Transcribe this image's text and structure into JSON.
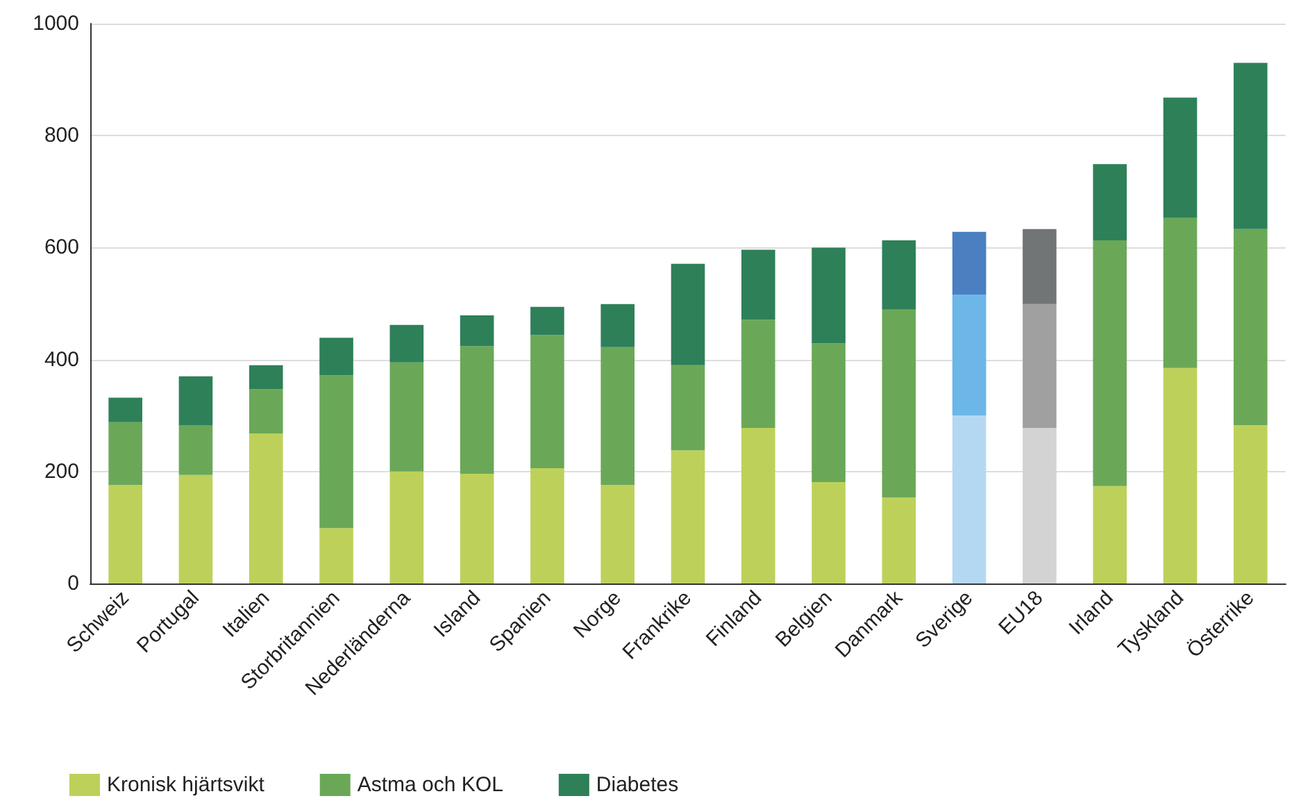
{
  "chart_data": {
    "type": "bar",
    "stacked": true,
    "categories": [
      "Schweiz",
      "Portugal",
      "Italien",
      "Storbritannien",
      "Nederländerna",
      "Island",
      "Spanien",
      "Norge",
      "Frankrike",
      "Finland",
      "Belgien",
      "Danmark",
      "Sverige",
      "EU18",
      "Irland",
      "Tyskland",
      "Österrike"
    ],
    "series": [
      {
        "name": "Kronisk hjärtsvikt",
        "color": "#bdd15a",
        "colors": [
          "#bdd15a",
          "#bdd15a",
          "#bdd15a",
          "#bdd15a",
          "#bdd15a",
          "#bdd15a",
          "#bdd15a",
          "#bdd15a",
          "#bdd15a",
          "#bdd15a",
          "#bdd15a",
          "#bdd15a",
          "#b5d8f2",
          "#d3d3d3",
          "#bdd15a",
          "#bdd15a",
          "#bdd15a"
        ],
        "values": [
          176,
          194,
          268,
          99,
          200,
          196,
          206,
          176,
          238,
          278,
          181,
          154,
          300,
          278,
          174,
          385,
          283
        ]
      },
      {
        "name": "Astma och KOL",
        "color": "#6aa858",
        "colors": [
          "#6aa858",
          "#6aa858",
          "#6aa858",
          "#6aa858",
          "#6aa858",
          "#6aa858",
          "#6aa858",
          "#6aa858",
          "#6aa858",
          "#6aa858",
          "#6aa858",
          "#6aa858",
          "#6cb6e8",
          "#a0a0a0",
          "#6aa858",
          "#6aa858",
          "#6aa858"
        ],
        "values": [
          112,
          89,
          79,
          273,
          195,
          228,
          238,
          246,
          152,
          193,
          248,
          335,
          216,
          221,
          439,
          268,
          350
        ]
      },
      {
        "name": "Diabetes",
        "color": "#2e8059",
        "colors": [
          "#2e8059",
          "#2e8059",
          "#2e8059",
          "#2e8059",
          "#2e8059",
          "#2e8059",
          "#2e8059",
          "#2e8059",
          "#2e8059",
          "#2e8059",
          "#2e8059",
          "#2e8059",
          "#4a7fc0",
          "#727575",
          "#2e8059",
          "#2e8059",
          "#2e8059"
        ],
        "values": [
          44,
          87,
          43,
          67,
          67,
          55,
          50,
          77,
          181,
          125,
          171,
          124,
          112,
          134,
          136,
          215,
          297
        ]
      }
    ],
    "ylim": [
      0,
      1000
    ],
    "yticks": [
      0,
      200,
      400,
      600,
      800,
      1000
    ],
    "grid": "y",
    "legend": "bottom left"
  }
}
